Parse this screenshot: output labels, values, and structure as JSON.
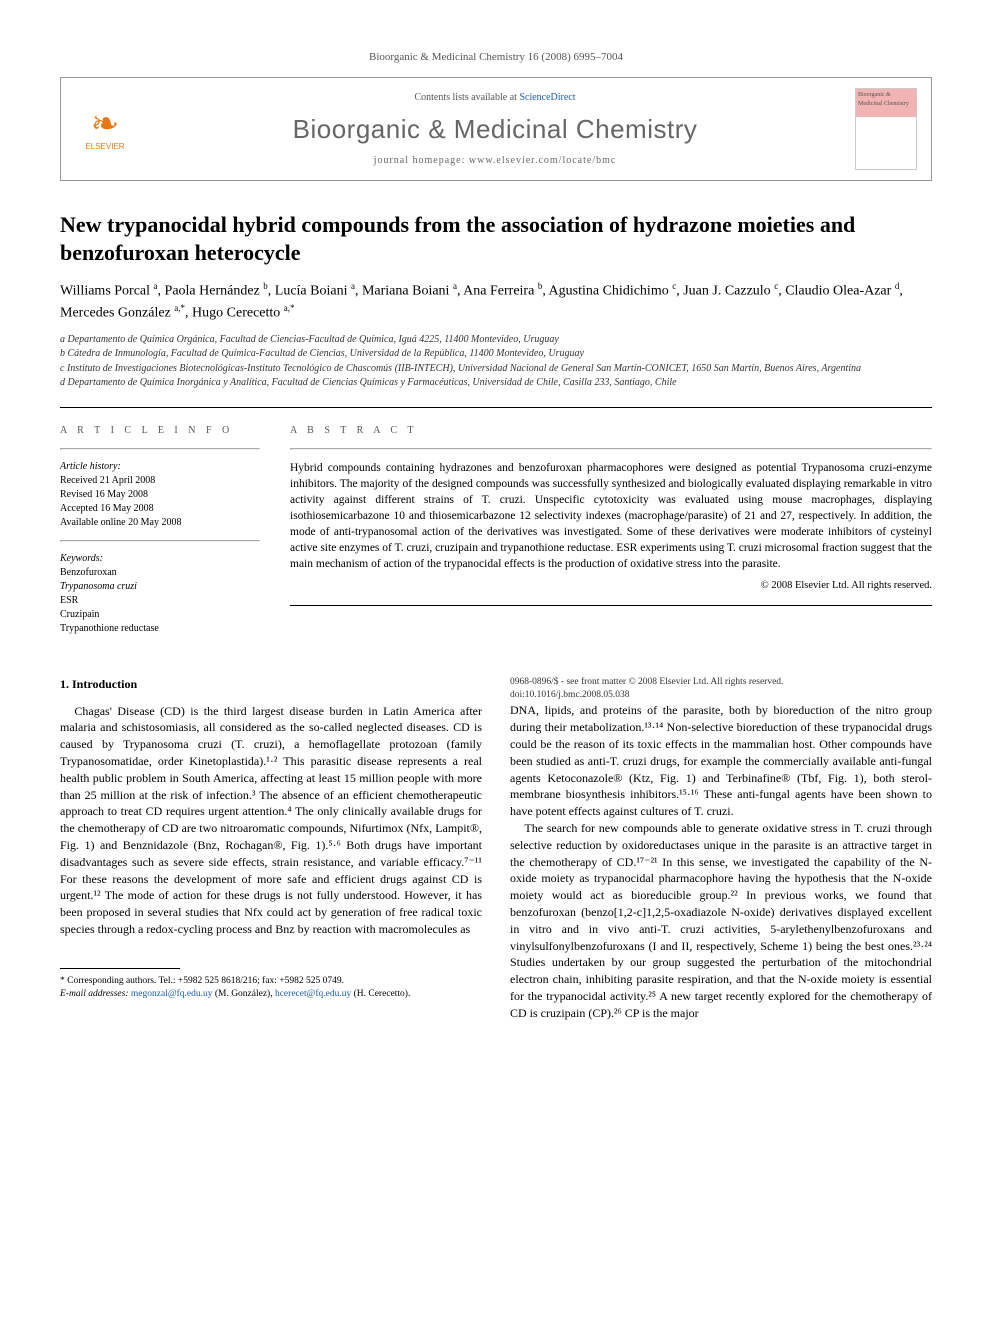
{
  "running_head": "Bioorganic & Medicinal Chemistry 16 (2008) 6995–7004",
  "header": {
    "contents_prefix": "Contents lists available at ",
    "contents_link": "ScienceDirect",
    "journal": "Bioorganic & Medicinal Chemistry",
    "homepage_prefix": "journal homepage: ",
    "homepage": "www.elsevier.com/locate/bmc",
    "publisher": "ELSEVIER",
    "cover_label": "Bioorganic & Medicinal Chemistry"
  },
  "title": "New trypanocidal hybrid compounds from the association of hydrazone moieties and benzofuroxan heterocycle",
  "authors_html": "Williams Porcal <sup>a</sup>, Paola Hernández <sup>b</sup>, Lucía Boiani <sup>a</sup>, Mariana Boiani <sup>a</sup>, Ana Ferreira <sup>b</sup>, Agustina Chidichimo <sup>c</sup>, Juan J. Cazzulo <sup>c</sup>, Claudio Olea-Azar <sup>d</sup>, Mercedes González <sup>a,*</sup>, Hugo Cerecetto <sup>a,*</sup>",
  "affiliations": [
    "a Departamento de Química Orgánica, Facultad de Ciencias-Facultad de Química, Iguá 4225, 11400 Montevideo, Uruguay",
    "b Cátedra de Inmunología, Facultad de Química-Facultad de Ciencias, Universidad de la República, 11400 Montevideo, Uruguay",
    "c Instituto de Investigaciones Biotecnológicas-Instituto Tecnológico de Chascomús (IIB-INTECH), Universidad Nacional de General San Martín-CONICET, 1650 San Martín, Buenos Aires, Argentina",
    "d Departamento de Química Inorgánica y Analítica, Facultad de Ciencias Químicas y Farmacéuticas, Universidad de Chile, Casilla 233, Santiago, Chile"
  ],
  "article_info": {
    "head": "A R T I C L E   I N F O",
    "history_label": "Article history:",
    "history": [
      "Received 21 April 2008",
      "Revised 16 May 2008",
      "Accepted 16 May 2008",
      "Available online 20 May 2008"
    ],
    "keywords_label": "Keywords:",
    "keywords": [
      "Benzofuroxan",
      "Trypanosoma cruzi",
      "ESR",
      "Cruzipain",
      "Trypanothione reductase"
    ]
  },
  "abstract": {
    "head": "A B S T R A C T",
    "text": "Hybrid compounds containing hydrazones and benzofuroxan pharmacophores were designed as potential Trypanosoma cruzi-enzyme inhibitors. The majority of the designed compounds was successfully synthesized and biologically evaluated displaying remarkable in vitro activity against different strains of T. cruzi. Unspecific cytotoxicity was evaluated using mouse macrophages, displaying isothiosemicarbazone 10 and thiosemicarbazone 12 selectivity indexes (macrophage/parasite) of 21 and 27, respectively. In addition, the mode of anti-trypanosomal action of the derivatives was investigated. Some of these derivatives were moderate inhibitors of cysteinyl active site enzymes of T. cruzi, cruzipain and trypanothione reductase. ESR experiments using T. cruzi microsomal fraction suggest that the main mechanism of action of the trypanocidal effects is the production of oxidative stress into the parasite.",
    "copyright": "© 2008 Elsevier Ltd. All rights reserved."
  },
  "section1": {
    "head": "1. Introduction",
    "p1": "Chagas' Disease (CD) is the third largest disease burden in Latin America after malaria and schistosomiasis, all considered as the so-called neglected diseases. CD is caused by Trypanosoma cruzi (T. cruzi), a hemoflagellate protozoan (family Trypanosomatidae, order Kinetoplastida).¹·² This parasitic disease represents a real health public problem in South America, affecting at least 15 million people with more than 25 million at the risk of infection.³ The absence of an efficient chemotherapeutic approach to treat CD requires urgent attention.⁴ The only clinically available drugs for the chemotherapy of CD are two nitroaromatic compounds, Nifurtimox (Nfx, Lampit®, Fig. 1) and Benznidazole (Bnz, Rochagan®, Fig. 1).⁵·⁶ Both drugs have important disadvantages such as severe side effects, strain resistance, and variable efficacy.⁷⁻¹¹ For these reasons the development of more safe and efficient drugs against CD is urgent.¹² The mode of action for these drugs is not fully understood. However, it has been proposed in several studies that Nfx could act by generation of free radical toxic species through a redox-cycling process and Bnz by reaction with macromolecules as",
    "p2": "DNA, lipids, and proteins of the parasite, both by bioreduction of the nitro group during their metabolization.¹³·¹⁴ Non-selective bioreduction of these trypanocidal drugs could be the reason of its toxic effects in the mammalian host. Other compounds have been studied as anti-T. cruzi drugs, for example the commercially available anti-fungal agents Ketoconazole® (Ktz, Fig. 1) and Terbinafine® (Tbf, Fig. 1), both sterol-membrane biosynthesis inhibitors.¹⁵·¹⁶ These anti-fungal agents have been shown to have potent effects against cultures of T. cruzi.",
    "p3": "The search for new compounds able to generate oxidative stress in T. cruzi through selective reduction by oxidoreductases unique in the parasite is an attractive target in the chemotherapy of CD.¹⁷⁻²¹ In this sense, we investigated the capability of the N-oxide moiety as trypanocidal pharmacophore having the hypothesis that the N-oxide moiety would act as bioreducible group.²² In previous works, we found that benzofuroxan (benzo[1,2-c]1,2,5-oxadiazole N-oxide) derivatives displayed excellent in vitro and in vivo anti-T. cruzi activities, 5-arylethenylbenzofuroxans and vinylsulfonylbenzofuroxans (I and II, respectively, Scheme 1) being the best ones.²³·²⁴ Studies undertaken by our group suggested the perturbation of the mitochondrial electron chain, inhibiting parasite respiration, and that the N-oxide moiety is essential for the trypanocidal activity.²⁵ A new target recently explored for the chemotherapy of CD is cruzipain (CP).²⁶ CP is the major"
  },
  "footer": {
    "corr": "* Corresponding authors. Tel.: +5982 525 8618/216; fax: +5982 525 0749.",
    "email_label": "E-mail addresses:",
    "email1": "megonzal@fq.edu.uy",
    "email1_who": "(M. González),",
    "email2": "hcerecet@fq.edu.uy",
    "email2_who": "(H. Cerecetto).",
    "front_matter": "0968-0896/$ - see front matter © 2008 Elsevier Ltd. All rights reserved.",
    "doi": "doi:10.1016/j.bmc.2008.05.038"
  },
  "colors": {
    "link": "#1a5dab",
    "publisher": "#e67817",
    "muted": "#666666"
  }
}
